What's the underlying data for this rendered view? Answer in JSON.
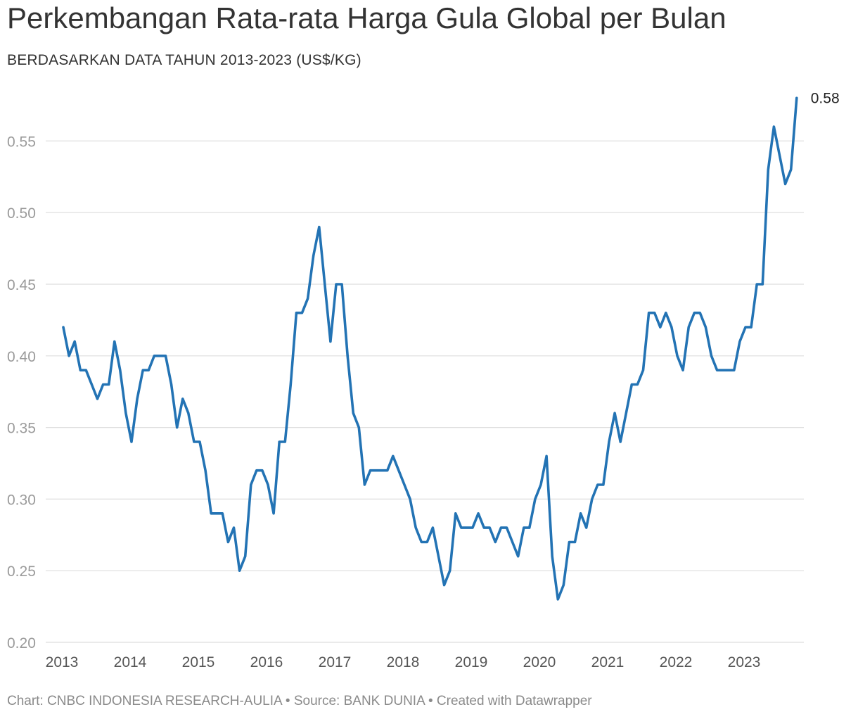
{
  "header": {
    "title": "Perkembangan Rata-rata Harga Gula Global per Bulan",
    "subtitle": "BERDASARKAN DATA TAHUN 2013-2023 (US$/KG)"
  },
  "footer": {
    "text": "Chart: CNBC INDONESIA RESEARCH-AULIA • Source: BANK DUNIA • Created with Datawrapper"
  },
  "chart_data": {
    "type": "line",
    "title": "Perkembangan Rata-rata Harga Gula Global per Bulan",
    "subtitle": "BERDASARKAN DATA TAHUN 2013-2023 (US$/KG)",
    "xlabel": "",
    "ylabel": "",
    "x_start": "2013-01",
    "x_ticks": [
      "2013",
      "2014",
      "2015",
      "2016",
      "2017",
      "2018",
      "2019",
      "2020",
      "2021",
      "2022",
      "2023"
    ],
    "y_ticks": [
      "0.20",
      "0.25",
      "0.30",
      "0.35",
      "0.40",
      "0.45",
      "0.50",
      "0.55"
    ],
    "ylim": [
      0.2,
      0.58
    ],
    "grid": true,
    "legend": "none",
    "end_label": "0.58",
    "colors": {
      "line": "#2373b4",
      "grid": "#dedede"
    },
    "series": [
      {
        "values": [
          0.42,
          0.4,
          0.41,
          0.39,
          0.39,
          0.38,
          0.37,
          0.38,
          0.38,
          0.41,
          0.39,
          0.36,
          0.34,
          0.37,
          0.39,
          0.39,
          0.4,
          0.4,
          0.4,
          0.38,
          0.35,
          0.37,
          0.36,
          0.34,
          0.34,
          0.32,
          0.29,
          0.29,
          0.29,
          0.27,
          0.28,
          0.25,
          0.26,
          0.31,
          0.32,
          0.32,
          0.31,
          0.29,
          0.34,
          0.34,
          0.38,
          0.43,
          0.43,
          0.44,
          0.47,
          0.49,
          0.45,
          0.41,
          0.45,
          0.45,
          0.4,
          0.36,
          0.35,
          0.31,
          0.32,
          0.32,
          0.32,
          0.32,
          0.33,
          0.32,
          0.31,
          0.3,
          0.28,
          0.27,
          0.27,
          0.28,
          0.26,
          0.24,
          0.25,
          0.29,
          0.28,
          0.28,
          0.28,
          0.29,
          0.28,
          0.28,
          0.27,
          0.28,
          0.28,
          0.27,
          0.26,
          0.28,
          0.28,
          0.3,
          0.31,
          0.33,
          0.26,
          0.23,
          0.24,
          0.27,
          0.27,
          0.29,
          0.28,
          0.3,
          0.31,
          0.31,
          0.34,
          0.36,
          0.34,
          0.36,
          0.38,
          0.38,
          0.39,
          0.43,
          0.43,
          0.42,
          0.43,
          0.42,
          0.4,
          0.39,
          0.42,
          0.43,
          0.43,
          0.42,
          0.4,
          0.39,
          0.39,
          0.39,
          0.39,
          0.41,
          0.42,
          0.42,
          0.45,
          0.45,
          0.53,
          0.56,
          0.54,
          0.52,
          0.53,
          0.58
        ]
      }
    ]
  }
}
